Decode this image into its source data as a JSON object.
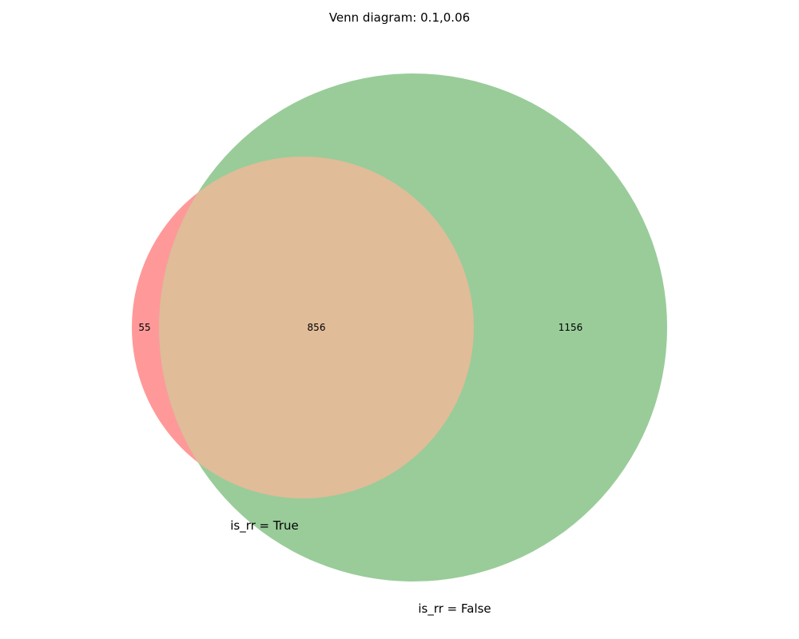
{
  "title": "Venn diagram: 0.1,0.06",
  "colors": {
    "set_a": "#ff9999",
    "set_b": "#99cc99",
    "intersection": "#e0bc99",
    "background": "#ffffff"
  },
  "sets": [
    {
      "label": "is_rr = True"
    },
    {
      "label": "is_rr = False"
    }
  ],
  "regions": {
    "a_only": "55",
    "intersection": "856",
    "b_only": "1156"
  }
}
